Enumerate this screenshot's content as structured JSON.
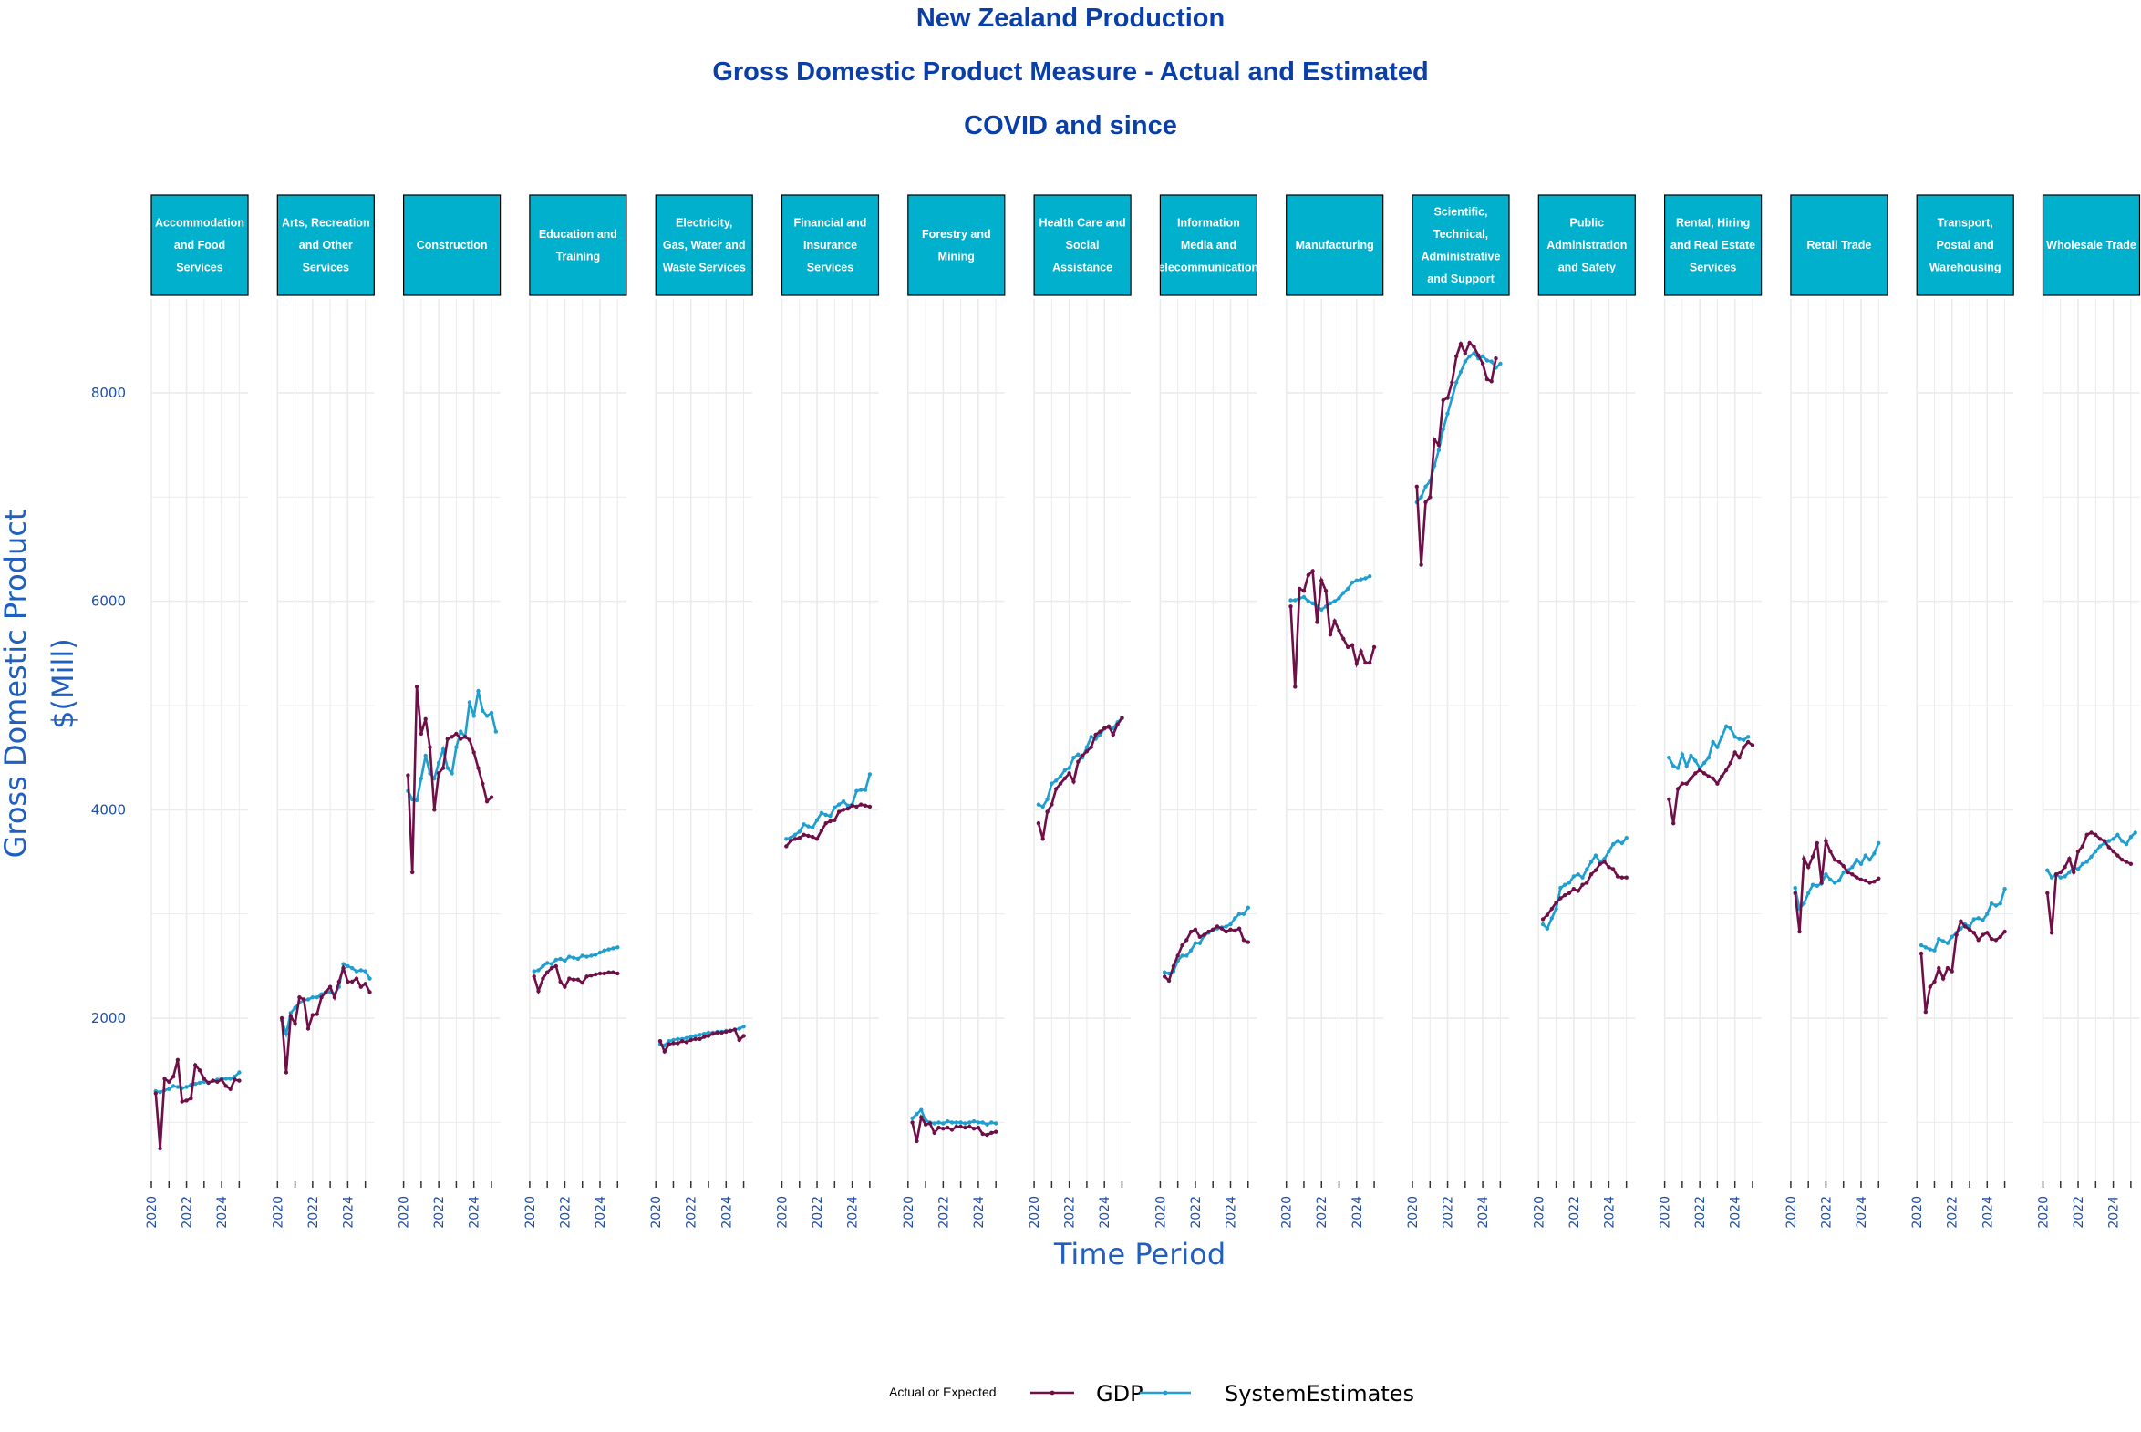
{
  "title": {
    "line1": "New Zealand Production",
    "line2": "Gross Domestic Product Measure - Actual and Estimated",
    "line3": "COVID and since"
  },
  "colors": {
    "gdp": "#6f0f47",
    "estimates": "#1f9fd0",
    "strip_fill": "#00b0cc",
    "grid": "#ebebeb",
    "text": "#1f4fa8"
  },
  "chart_data": {
    "type": "line",
    "facet_by": "industry",
    "xlabel": "Time Period",
    "ylabel_lines": [
      "Gross Domestic Product",
      "$(Mill)"
    ],
    "ylim": [
      400,
      8900
    ],
    "yticks": [
      2000,
      4000,
      6000,
      8000
    ],
    "x_range": [
      2020.0,
      2025.5
    ],
    "xticks": [
      2020,
      2022,
      2024
    ],
    "x_start": 2020.25,
    "x_step": 0.25,
    "legend": {
      "title": "Actual or Expected",
      "position": "bottom"
    },
    "series_names": [
      "GDP",
      "SystemEstimates"
    ],
    "facets": [
      {
        "label": "Accommodation and Food Services",
        "gdp": [
          1280,
          750,
          1420,
          1390,
          1440,
          1600,
          1200,
          1210,
          1230,
          1550,
          1500,
          1420,
          1380,
          1400,
          1390,
          1410,
          1350,
          1320,
          1410,
          1400
        ],
        "est": [
          1300,
          1290,
          1310,
          1320,
          1350,
          1340,
          1330,
          1340,
          1360,
          1370,
          1380,
          1390,
          1380,
          1400,
          1410,
          1420,
          1420,
          1420,
          1440,
          1480
        ]
      },
      {
        "label": "Arts, Recreation and Other Services",
        "gdp": [
          2000,
          1480,
          2020,
          1950,
          2200,
          2180,
          1900,
          2030,
          2040,
          2200,
          2250,
          2300,
          2200,
          2350,
          2480,
          2350,
          2350,
          2380,
          2300,
          2330,
          2250
        ],
        "est": [
          1980,
          1850,
          2050,
          2100,
          2150,
          2170,
          2180,
          2200,
          2200,
          2230,
          2250,
          2250,
          2230,
          2300,
          2520,
          2500,
          2480,
          2450,
          2460,
          2450,
          2380
        ]
      },
      {
        "label": "Construction",
        "gdp": [
          4330,
          3400,
          5180,
          4730,
          4870,
          4600,
          4000,
          4350,
          4400,
          4680,
          4700,
          4730,
          4680,
          4700,
          4670,
          4550,
          4400,
          4250,
          4080,
          4120
        ],
        "est": [
          4180,
          4100,
          4090,
          4300,
          4520,
          4350,
          4300,
          4450,
          4580,
          4400,
          4350,
          4600,
          4750,
          4700,
          5030,
          4900,
          5140,
          4950,
          4900,
          4930,
          4750
        ]
      },
      {
        "label": "Education and Training",
        "gdp": [
          2400,
          2260,
          2380,
          2440,
          2480,
          2500,
          2350,
          2300,
          2380,
          2370,
          2370,
          2340,
          2400,
          2410,
          2420,
          2430,
          2430,
          2440,
          2440,
          2430
        ],
        "est": [
          2450,
          2460,
          2500,
          2530,
          2520,
          2560,
          2570,
          2550,
          2590,
          2580,
          2570,
          2600,
          2590,
          2600,
          2610,
          2630,
          2650,
          2660,
          2670,
          2680
        ]
      },
      {
        "label": "Electricity, Gas, Water and Waste Services",
        "gdp": [
          1780,
          1680,
          1750,
          1760,
          1760,
          1780,
          1770,
          1790,
          1800,
          1800,
          1820,
          1830,
          1850,
          1860,
          1860,
          1870,
          1880,
          1890,
          1790,
          1830
        ],
        "est": [
          1750,
          1740,
          1780,
          1790,
          1800,
          1800,
          1810,
          1820,
          1830,
          1840,
          1850,
          1860,
          1860,
          1870,
          1870,
          1880,
          1880,
          1890,
          1900,
          1920
        ]
      },
      {
        "label": "Financial and Insurance Services",
        "gdp": [
          3650,
          3700,
          3720,
          3730,
          3760,
          3750,
          3740,
          3720,
          3800,
          3870,
          3890,
          3900,
          3980,
          4000,
          4010,
          4040,
          4030,
          4050,
          4040,
          4030
        ],
        "est": [
          3720,
          3730,
          3760,
          3790,
          3860,
          3840,
          3830,
          3900,
          3970,
          3950,
          3940,
          4020,
          4050,
          4080,
          4040,
          4050,
          4180,
          4190,
          4190,
          4340
        ]
      },
      {
        "label": "Forestry and Mining",
        "gdp": [
          1000,
          820,
          1050,
          980,
          990,
          900,
          950,
          940,
          950,
          930,
          960,
          960,
          950,
          960,
          940,
          950,
          890,
          880,
          900,
          910
        ],
        "est": [
          1040,
          1080,
          1120,
          1020,
          1000,
          990,
          1000,
          990,
          1010,
          1000,
          1000,
          1000,
          990,
          1000,
          1010,
          1000,
          1000,
          980,
          1000,
          990
        ]
      },
      {
        "label": "Health Care and Social Assistance",
        "gdp": [
          3870,
          3720,
          3980,
          4050,
          4200,
          4250,
          4300,
          4350,
          4270,
          4460,
          4520,
          4560,
          4600,
          4720,
          4750,
          4780,
          4800,
          4720,
          4820,
          4880
        ],
        "est": [
          4050,
          4030,
          4100,
          4250,
          4280,
          4320,
          4380,
          4400,
          4500,
          4530,
          4500,
          4600,
          4700,
          4680,
          4720,
          4780,
          4790,
          4780,
          4840,
          4880
        ]
      },
      {
        "label": "Information Media and Telecommunications",
        "gdp": [
          2400,
          2360,
          2500,
          2600,
          2700,
          2750,
          2830,
          2850,
          2780,
          2800,
          2830,
          2850,
          2880,
          2860,
          2830,
          2850,
          2840,
          2860,
          2750,
          2730
        ],
        "est": [
          2440,
          2430,
          2450,
          2550,
          2600,
          2600,
          2650,
          2720,
          2720,
          2790,
          2820,
          2850,
          2860,
          2870,
          2880,
          2900,
          2960,
          3000,
          3000,
          3060
        ]
      },
      {
        "label": "Manufacturing",
        "gdp": [
          5950,
          5180,
          6120,
          6100,
          6250,
          6290,
          5800,
          6200,
          6100,
          5680,
          5810,
          5720,
          5640,
          5560,
          5580,
          5400,
          5520,
          5410,
          5410,
          5560
        ],
        "est": [
          6010,
          6010,
          6030,
          6040,
          6000,
          5980,
          5950,
          5920,
          5950,
          5980,
          6000,
          6030,
          6080,
          6120,
          6180,
          6200,
          6210,
          6220,
          6240
        ],
        "est_start": 2020.25
      },
      {
        "label": "Professional, Scientific, Technical, Administrative and Support Services",
        "gdp": [
          7100,
          6350,
          6950,
          7000,
          7550,
          7500,
          7930,
          7950,
          8100,
          8350,
          8470,
          8380,
          8480,
          8440,
          8360,
          8280,
          8130,
          8110,
          8330
        ],
        "est": [
          6950,
          7000,
          7100,
          7150,
          7300,
          7450,
          7650,
          7800,
          7950,
          8100,
          8200,
          8300,
          8350,
          8380,
          8330,
          8350,
          8310,
          8300,
          8240,
          8280
        ]
      },
      {
        "label": "Public Administration and Safety",
        "gdp": [
          2950,
          2990,
          3050,
          3110,
          3150,
          3180,
          3200,
          3240,
          3220,
          3280,
          3300,
          3380,
          3420,
          3480,
          3500,
          3450,
          3430,
          3360,
          3350,
          3350
        ],
        "est": [
          2900,
          2860,
          2960,
          3050,
          3250,
          3280,
          3300,
          3360,
          3380,
          3350,
          3430,
          3500,
          3560,
          3500,
          3530,
          3600,
          3670,
          3700,
          3680,
          3730
        ]
      },
      {
        "label": "Rental, Hiring and Real Estate Services",
        "gdp": [
          4100,
          3870,
          4200,
          4250,
          4250,
          4300,
          4350,
          4380,
          4350,
          4320,
          4300,
          4250,
          4320,
          4380,
          4450,
          4550,
          4500,
          4600,
          4650,
          4620
        ],
        "est": [
          4500,
          4420,
          4400,
          4530,
          4420,
          4520,
          4470,
          4400,
          4450,
          4500,
          4650,
          4600,
          4700,
          4800,
          4780,
          4700,
          4680,
          4670,
          4700
        ],
        "est_start": 2020.25
      },
      {
        "label": "Retail Trade",
        "gdp": [
          3200,
          2830,
          3530,
          3450,
          3550,
          3680,
          3300,
          3700,
          3600,
          3520,
          3500,
          3460,
          3400,
          3380,
          3350,
          3330,
          3320,
          3300,
          3310,
          3340
        ],
        "est": [
          3250,
          3050,
          3100,
          3200,
          3280,
          3270,
          3290,
          3380,
          3330,
          3300,
          3320,
          3400,
          3420,
          3450,
          3520,
          3480,
          3560,
          3520,
          3580,
          3680
        ]
      },
      {
        "label": "Transport, Postal and Warehousing",
        "gdp": [
          2620,
          2060,
          2300,
          2350,
          2480,
          2380,
          2480,
          2450,
          2800,
          2930,
          2880,
          2850,
          2820,
          2750,
          2800,
          2820,
          2760,
          2750,
          2780,
          2830
        ],
        "est": [
          2700,
          2680,
          2660,
          2650,
          2760,
          2740,
          2720,
          2780,
          2820,
          2860,
          2900,
          2880,
          2950,
          2960,
          2940,
          3000,
          3100,
          3080,
          3100,
          3240
        ]
      },
      {
        "label": "Wholesale Trade",
        "gdp": [
          3200,
          2820,
          3380,
          3400,
          3450,
          3530,
          3400,
          3600,
          3650,
          3760,
          3780,
          3760,
          3720,
          3700,
          3640,
          3600,
          3560,
          3520,
          3500,
          3480
        ],
        "est": [
          3420,
          3350,
          3380,
          3350,
          3360,
          3400,
          3450,
          3430,
          3480,
          3500,
          3550,
          3600,
          3650,
          3680,
          3700,
          3720,
          3760,
          3700,
          3670,
          3740,
          3780
        ]
      }
    ]
  }
}
